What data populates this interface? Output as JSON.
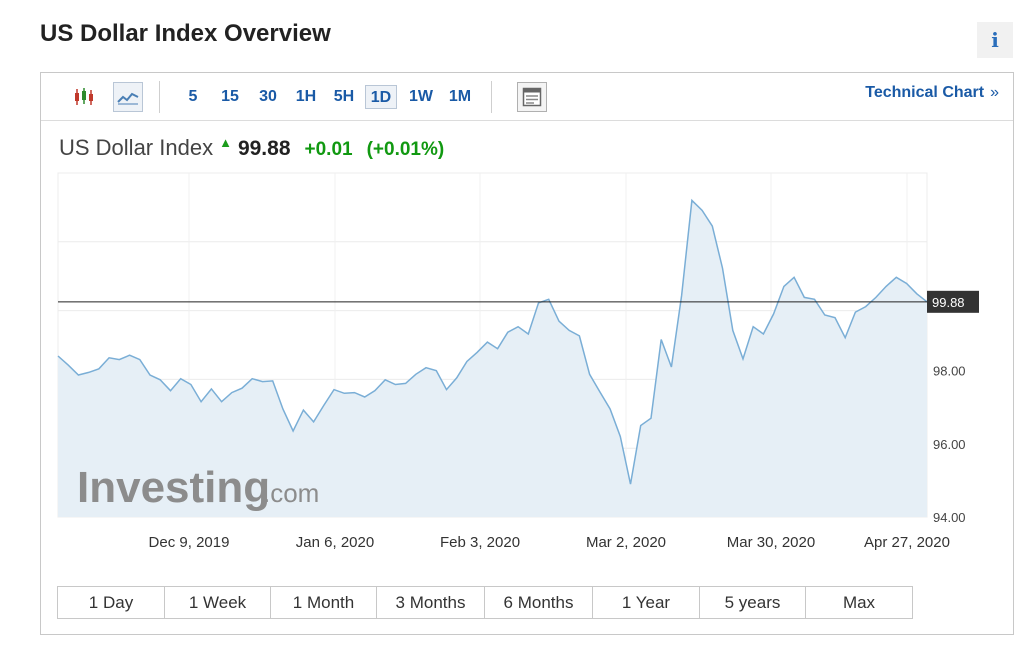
{
  "page": {
    "title": "US Dollar Index Overview",
    "info_glyph": "i"
  },
  "toolbar": {
    "timeframes": [
      "5",
      "15",
      "30",
      "1H",
      "5H",
      "1D",
      "1W",
      "1M"
    ],
    "active_timeframe": "1D",
    "technical_chart_label": "Technical Chart",
    "chevron": "»",
    "icons": [
      "candlestick-icon",
      "line-chart-icon",
      "calendar-table-icon"
    ]
  },
  "quote": {
    "name": "US Dollar Index",
    "direction": "up",
    "last": "99.88",
    "change": "+0.01",
    "change_pct": "(+0.01%)"
  },
  "watermark": {
    "brand": "Investing",
    "suffix": ".com"
  },
  "ranges": [
    "1 Day",
    "1 Week",
    "1 Month",
    "3 Months",
    "6 Months",
    "1 Year",
    "5 years",
    "Max"
  ],
  "colors": {
    "accent": "#1a5aa6",
    "up": "#119911",
    "line": "#7aaed6",
    "fill": "#e6eff6",
    "price_tag_bg": "#333333"
  },
  "chart_data": {
    "type": "area",
    "title": "",
    "xlabel": "",
    "ylabel": "",
    "x_tick_labels": [
      "Dec 9, 2019",
      "Jan 6, 2020",
      "Feb 3, 2020",
      "Mar 2, 2020",
      "Mar 30, 2020",
      "Apr 27, 2020"
    ],
    "y_tick_labels": [
      "94.00",
      "96.00",
      "98.00"
    ],
    "ylim": [
      94.0,
      103.4
    ],
    "current_value": 99.88,
    "current_label": "99.88",
    "grid": true,
    "series": [
      {
        "values": [
          98.4,
          98.15,
          97.88,
          97.95,
          98.05,
          98.35,
          98.3,
          98.42,
          98.3,
          97.88,
          97.75,
          97.45,
          97.78,
          97.62,
          97.15,
          97.5,
          97.15,
          97.4,
          97.52,
          97.78,
          97.7,
          97.72,
          96.95,
          96.35,
          96.92,
          96.6,
          97.05,
          97.48,
          97.38,
          97.4,
          97.28,
          97.45,
          97.75,
          97.62,
          97.65,
          97.9,
          98.08,
          98.0,
          97.48,
          97.8,
          98.25,
          98.5,
          98.78,
          98.6,
          99.05,
          99.2,
          99.0,
          99.85,
          99.95,
          99.35,
          99.1,
          98.95,
          97.9,
          97.42,
          96.95,
          96.2,
          94.9,
          96.5,
          96.7,
          98.85,
          98.1,
          100.05,
          102.65,
          102.38,
          101.95,
          100.8,
          99.1,
          98.32,
          99.2,
          99.0,
          99.55,
          100.3,
          100.55,
          100.0,
          99.95,
          99.52,
          99.45,
          98.9,
          99.6,
          99.75,
          100.0,
          100.3,
          100.55,
          100.38,
          100.1,
          99.88
        ]
      }
    ]
  }
}
